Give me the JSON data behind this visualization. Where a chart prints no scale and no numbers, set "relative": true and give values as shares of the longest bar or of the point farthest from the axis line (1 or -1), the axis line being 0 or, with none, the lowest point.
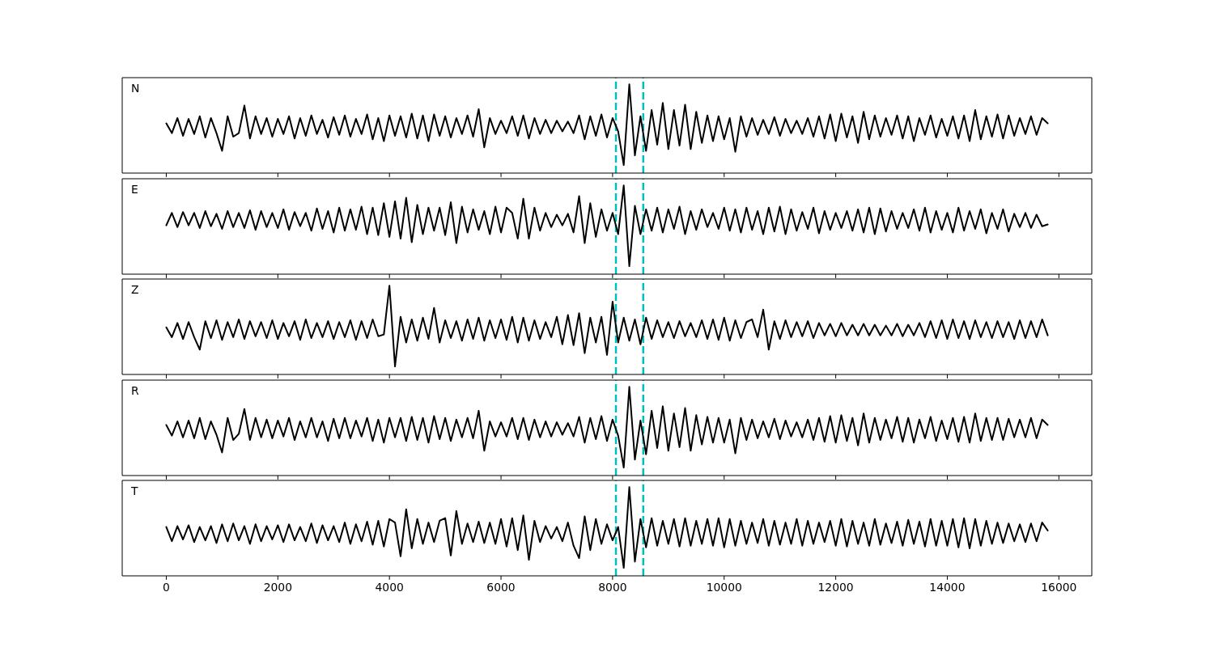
{
  "chart_data": [
    {
      "type": "line",
      "annotations": [
        "N"
      ],
      "relative": true,
      "color": "#000000",
      "xlim": [
        -790,
        16590
      ],
      "xticks": [
        0,
        2000,
        4000,
        6000,
        8000,
        10000,
        12000,
        14000,
        16000
      ],
      "tick_labels": false,
      "ref_lines": [
        {
          "axis": "x",
          "value": 8060,
          "color": "#00bfbf",
          "line_style": "dashed"
        },
        {
          "axis": "x",
          "value": 8550,
          "color": "#00bfbf",
          "line_style": "dashed"
        }
      ],
      "x": [
        0,
        100,
        200,
        300,
        400,
        500,
        600,
        700,
        800,
        900,
        1000,
        1100,
        1200,
        1300,
        1400,
        1500,
        1600,
        1700,
        1800,
        1900,
        2000,
        2100,
        2200,
        2300,
        2400,
        2500,
        2600,
        2700,
        2800,
        2900,
        3000,
        3100,
        3200,
        3300,
        3400,
        3500,
        3600,
        3700,
        3800,
        3900,
        4000,
        4100,
        4200,
        4300,
        4400,
        4500,
        4600,
        4700,
        4800,
        4900,
        5000,
        5100,
        5200,
        5300,
        5400,
        5500,
        5600,
        5700,
        5800,
        5900,
        6000,
        6100,
        6200,
        6300,
        6400,
        6500,
        6600,
        6700,
        6800,
        6900,
        7000,
        7100,
        7200,
        7300,
        7400,
        7500,
        7600,
        7700,
        7800,
        7900,
        8000,
        8100,
        8200,
        8300,
        8400,
        8500,
        8600,
        8700,
        8800,
        8900,
        9000,
        9100,
        9200,
        9300,
        9400,
        9500,
        9600,
        9700,
        9800,
        9900,
        10000,
        10100,
        10200,
        10300,
        10400,
        10500,
        10600,
        10700,
        10800,
        10900,
        11000,
        11100,
        11200,
        11300,
        11400,
        11500,
        11600,
        11700,
        11800,
        11900,
        12000,
        12100,
        12200,
        12300,
        12400,
        12500,
        12600,
        12700,
        12800,
        12900,
        13000,
        13100,
        13200,
        13300,
        13400,
        13500,
        13600,
        13700,
        13800,
        13900,
        14000,
        14100,
        14200,
        14300,
        14400,
        14500,
        14600,
        14700,
        14800,
        14900,
        15000,
        15100,
        15200,
        15300,
        15400,
        15500,
        15600,
        15700,
        15800
      ],
      "values": [
        0.56,
        0.45,
        0.62,
        0.42,
        0.61,
        0.44,
        0.64,
        0.4,
        0.62,
        0.45,
        0.25,
        0.64,
        0.41,
        0.45,
        0.76,
        0.39,
        0.64,
        0.44,
        0.62,
        0.41,
        0.61,
        0.44,
        0.64,
        0.39,
        0.62,
        0.42,
        0.65,
        0.44,
        0.6,
        0.4,
        0.63,
        0.43,
        0.65,
        0.41,
        0.61,
        0.44,
        0.66,
        0.38,
        0.62,
        0.36,
        0.65,
        0.42,
        0.64,
        0.4,
        0.67,
        0.39,
        0.65,
        0.36,
        0.66,
        0.42,
        0.64,
        0.4,
        0.62,
        0.44,
        0.65,
        0.41,
        0.72,
        0.29,
        0.62,
        0.44,
        0.59,
        0.45,
        0.64,
        0.42,
        0.65,
        0.39,
        0.62,
        0.44,
        0.6,
        0.45,
        0.59,
        0.47,
        0.58,
        0.45,
        0.65,
        0.38,
        0.64,
        0.42,
        0.66,
        0.4,
        0.62,
        0.47,
        0.09,
        1.0,
        0.2,
        0.64,
        0.25,
        0.71,
        0.32,
        0.79,
        0.27,
        0.71,
        0.31,
        0.77,
        0.27,
        0.69,
        0.34,
        0.65,
        0.36,
        0.64,
        0.38,
        0.62,
        0.24,
        0.64,
        0.41,
        0.62,
        0.43,
        0.6,
        0.44,
        0.63,
        0.42,
        0.61,
        0.45,
        0.59,
        0.44,
        0.62,
        0.41,
        0.64,
        0.39,
        0.66,
        0.36,
        0.67,
        0.4,
        0.64,
        0.34,
        0.69,
        0.38,
        0.65,
        0.41,
        0.62,
        0.43,
        0.65,
        0.39,
        0.64,
        0.36,
        0.62,
        0.43,
        0.65,
        0.4,
        0.61,
        0.42,
        0.64,
        0.39,
        0.65,
        0.36,
        0.71,
        0.38,
        0.64,
        0.41,
        0.66,
        0.39,
        0.65,
        0.42,
        0.62,
        0.44,
        0.64,
        0.43,
        0.62,
        0.56
      ]
    },
    {
      "type": "line",
      "annotations": [
        "E"
      ],
      "relative": true,
      "color": "#000000",
      "xlim": [
        -790,
        16590
      ],
      "xticks": [
        0,
        2000,
        4000,
        6000,
        8000,
        10000,
        12000,
        14000,
        16000
      ],
      "tick_labels": false,
      "ref_lines": [
        {
          "axis": "x",
          "value": 8060,
          "color": "#00bfbf",
          "line_style": "dashed"
        },
        {
          "axis": "x",
          "value": 8550,
          "color": "#00bfbf",
          "line_style": "dashed"
        }
      ],
      "x": [
        0,
        100,
        200,
        300,
        400,
        500,
        600,
        700,
        800,
        900,
        1000,
        1100,
        1200,
        1300,
        1400,
        1500,
        1600,
        1700,
        1800,
        1900,
        2000,
        2100,
        2200,
        2300,
        2400,
        2500,
        2600,
        2700,
        2800,
        2900,
        3000,
        3100,
        3200,
        3300,
        3400,
        3500,
        3600,
        3700,
        3800,
        3900,
        4000,
        4100,
        4200,
        4300,
        4400,
        4500,
        4600,
        4700,
        4800,
        4900,
        5000,
        5100,
        5200,
        5300,
        5400,
        5500,
        5600,
        5700,
        5800,
        5900,
        6000,
        6100,
        6200,
        6300,
        6400,
        6500,
        6600,
        6700,
        6800,
        6900,
        7000,
        7100,
        7200,
        7300,
        7400,
        7500,
        7600,
        7700,
        7800,
        7900,
        8000,
        8100,
        8200,
        8300,
        8400,
        8500,
        8600,
        8700,
        8800,
        8900,
        9000,
        9100,
        9200,
        9300,
        9400,
        9500,
        9600,
        9700,
        9800,
        9900,
        10000,
        10100,
        10200,
        10300,
        10400,
        10500,
        10600,
        10700,
        10800,
        10900,
        11000,
        11100,
        11200,
        11300,
        11400,
        11500,
        11600,
        11700,
        11800,
        11900,
        12000,
        12100,
        12200,
        12300,
        12400,
        12500,
        12600,
        12700,
        12800,
        12900,
        13000,
        13100,
        13200,
        13300,
        13400,
        13500,
        13600,
        13700,
        13800,
        13900,
        14000,
        14100,
        14200,
        14300,
        14400,
        14500,
        14600,
        14700,
        14800,
        14900,
        15000,
        15100,
        15200,
        15300,
        15400,
        15500,
        15600,
        15700,
        15800
      ],
      "values": [
        0.55,
        0.69,
        0.53,
        0.7,
        0.55,
        0.69,
        0.52,
        0.71,
        0.54,
        0.68,
        0.51,
        0.71,
        0.53,
        0.69,
        0.52,
        0.72,
        0.5,
        0.71,
        0.53,
        0.69,
        0.52,
        0.73,
        0.5,
        0.7,
        0.54,
        0.69,
        0.49,
        0.74,
        0.51,
        0.71,
        0.47,
        0.75,
        0.49,
        0.73,
        0.5,
        0.76,
        0.45,
        0.75,
        0.44,
        0.8,
        0.42,
        0.82,
        0.4,
        0.86,
        0.36,
        0.78,
        0.45,
        0.75,
        0.49,
        0.75,
        0.44,
        0.81,
        0.35,
        0.76,
        0.47,
        0.73,
        0.5,
        0.71,
        0.45,
        0.76,
        0.47,
        0.75,
        0.69,
        0.4,
        0.85,
        0.4,
        0.75,
        0.49,
        0.69,
        0.53,
        0.67,
        0.55,
        0.68,
        0.47,
        0.88,
        0.35,
        0.8,
        0.42,
        0.73,
        0.49,
        0.69,
        0.45,
        1.0,
        0.09,
        0.77,
        0.45,
        0.73,
        0.49,
        0.75,
        0.47,
        0.73,
        0.51,
        0.76,
        0.45,
        0.71,
        0.5,
        0.73,
        0.53,
        0.69,
        0.51,
        0.75,
        0.49,
        0.73,
        0.47,
        0.75,
        0.5,
        0.71,
        0.45,
        0.75,
        0.48,
        0.76,
        0.45,
        0.73,
        0.49,
        0.7,
        0.51,
        0.75,
        0.46,
        0.71,
        0.5,
        0.69,
        0.52,
        0.71,
        0.49,
        0.73,
        0.47,
        0.75,
        0.45,
        0.74,
        0.48,
        0.71,
        0.51,
        0.69,
        0.52,
        0.73,
        0.49,
        0.75,
        0.47,
        0.71,
        0.5,
        0.69,
        0.47,
        0.75,
        0.49,
        0.71,
        0.51,
        0.73,
        0.46,
        0.69,
        0.51,
        0.73,
        0.48,
        0.68,
        0.53,
        0.69,
        0.52,
        0.67,
        0.54,
        0.56
      ]
    },
    {
      "type": "line",
      "annotations": [
        "Z"
      ],
      "relative": true,
      "color": "#000000",
      "xlim": [
        -790,
        16590
      ],
      "xticks": [
        0,
        2000,
        4000,
        6000,
        8000,
        10000,
        12000,
        14000,
        16000
      ],
      "tick_labels": false,
      "ref_lines": [
        {
          "axis": "x",
          "value": 8060,
          "color": "#00bfbf",
          "line_style": "dashed"
        },
        {
          "axis": "x",
          "value": 8550,
          "color": "#00bfbf",
          "line_style": "dashed"
        }
      ],
      "x": [
        0,
        100,
        200,
        300,
        400,
        500,
        600,
        700,
        800,
        900,
        1000,
        1100,
        1200,
        1300,
        1400,
        1500,
        1600,
        1700,
        1800,
        1900,
        2000,
        2100,
        2200,
        2300,
        2400,
        2500,
        2600,
        2700,
        2800,
        2900,
        3000,
        3100,
        3200,
        3300,
        3400,
        3500,
        3600,
        3700,
        3800,
        3900,
        4000,
        4100,
        4200,
        4300,
        4400,
        4500,
        4600,
        4700,
        4800,
        4900,
        5000,
        5100,
        5200,
        5300,
        5400,
        5500,
        5600,
        5700,
        5800,
        5900,
        6000,
        6100,
        6200,
        6300,
        6400,
        6500,
        6600,
        6700,
        6800,
        6900,
        7000,
        7100,
        7200,
        7300,
        7400,
        7500,
        7600,
        7700,
        7800,
        7900,
        8000,
        8100,
        8200,
        8300,
        8400,
        8500,
        8600,
        8700,
        8800,
        8900,
        9000,
        9100,
        9200,
        9300,
        9400,
        9500,
        9600,
        9700,
        9800,
        9900,
        10000,
        10100,
        10200,
        10300,
        10400,
        10500,
        10600,
        10700,
        10800,
        10900,
        11000,
        11100,
        11200,
        11300,
        11400,
        11500,
        11600,
        11700,
        11800,
        11900,
        12000,
        12100,
        12200,
        12300,
        12400,
        12500,
        12600,
        12700,
        12800,
        12900,
        13000,
        13100,
        13200,
        13300,
        13400,
        13500,
        13600,
        13700,
        13800,
        13900,
        14000,
        14100,
        14200,
        14300,
        14400,
        14500,
        14600,
        14700,
        14800,
        14900,
        15000,
        15100,
        15200,
        15300,
        15400,
        15500,
        15600,
        15700,
        15800
      ],
      "values": [
        0.53,
        0.42,
        0.58,
        0.4,
        0.59,
        0.42,
        0.28,
        0.6,
        0.41,
        0.61,
        0.39,
        0.59,
        0.42,
        0.62,
        0.4,
        0.6,
        0.43,
        0.59,
        0.41,
        0.61,
        0.4,
        0.58,
        0.43,
        0.6,
        0.39,
        0.62,
        0.41,
        0.58,
        0.42,
        0.6,
        0.4,
        0.59,
        0.42,
        0.61,
        0.39,
        0.6,
        0.41,
        0.62,
        0.43,
        0.45,
        1.0,
        0.09,
        0.65,
        0.36,
        0.62,
        0.38,
        0.64,
        0.4,
        0.75,
        0.36,
        0.61,
        0.41,
        0.6,
        0.38,
        0.62,
        0.4,
        0.64,
        0.38,
        0.61,
        0.41,
        0.62,
        0.39,
        0.65,
        0.36,
        0.64,
        0.38,
        0.61,
        0.4,
        0.59,
        0.42,
        0.65,
        0.34,
        0.67,
        0.33,
        0.69,
        0.24,
        0.64,
        0.36,
        0.65,
        0.22,
        0.82,
        0.36,
        0.64,
        0.38,
        0.62,
        0.34,
        0.64,
        0.4,
        0.61,
        0.42,
        0.59,
        0.41,
        0.6,
        0.43,
        0.58,
        0.42,
        0.61,
        0.4,
        0.62,
        0.39,
        0.64,
        0.38,
        0.61,
        0.41,
        0.59,
        0.62,
        0.42,
        0.73,
        0.28,
        0.6,
        0.4,
        0.61,
        0.42,
        0.59,
        0.43,
        0.6,
        0.41,
        0.58,
        0.44,
        0.57,
        0.43,
        0.58,
        0.44,
        0.56,
        0.44,
        0.57,
        0.44,
        0.56,
        0.44,
        0.55,
        0.44,
        0.57,
        0.43,
        0.56,
        0.44,
        0.58,
        0.42,
        0.6,
        0.41,
        0.61,
        0.4,
        0.62,
        0.41,
        0.6,
        0.4,
        0.61,
        0.42,
        0.59,
        0.41,
        0.6,
        0.42,
        0.59,
        0.4,
        0.61,
        0.41,
        0.6,
        0.42,
        0.62,
        0.44
      ]
    },
    {
      "type": "line",
      "annotations": [
        "R"
      ],
      "relative": true,
      "color": "#000000",
      "xlim": [
        -790,
        16590
      ],
      "xticks": [
        0,
        2000,
        4000,
        6000,
        8000,
        10000,
        12000,
        14000,
        16000
      ],
      "tick_labels": false,
      "ref_lines": [
        {
          "axis": "x",
          "value": 8060,
          "color": "#00bfbf",
          "line_style": "dashed"
        },
        {
          "axis": "x",
          "value": 8550,
          "color": "#00bfbf",
          "line_style": "dashed"
        }
      ],
      "x": [
        0,
        100,
        200,
        300,
        400,
        500,
        600,
        700,
        800,
        900,
        1000,
        1100,
        1200,
        1300,
        1400,
        1500,
        1600,
        1700,
        1800,
        1900,
        2000,
        2100,
        2200,
        2300,
        2400,
        2500,
        2600,
        2700,
        2800,
        2900,
        3000,
        3100,
        3200,
        3300,
        3400,
        3500,
        3600,
        3700,
        3800,
        3900,
        4000,
        4100,
        4200,
        4300,
        4400,
        4500,
        4600,
        4700,
        4800,
        4900,
        5000,
        5100,
        5200,
        5300,
        5400,
        5500,
        5600,
        5700,
        5800,
        5900,
        6000,
        6100,
        6200,
        6300,
        6400,
        6500,
        6600,
        6700,
        6800,
        6900,
        7000,
        7100,
        7200,
        7300,
        7400,
        7500,
        7600,
        7700,
        7800,
        7900,
        8000,
        8100,
        8200,
        8300,
        8400,
        8500,
        8600,
        8700,
        8800,
        8900,
        9000,
        9100,
        9200,
        9300,
        9400,
        9500,
        9600,
        9700,
        9800,
        9900,
        10000,
        10100,
        10200,
        10300,
        10400,
        10500,
        10600,
        10700,
        10800,
        10900,
        11000,
        11100,
        11200,
        11300,
        11400,
        11500,
        11600,
        11700,
        11800,
        11900,
        12000,
        12100,
        12200,
        12300,
        12400,
        12500,
        12600,
        12700,
        12800,
        12900,
        13000,
        13100,
        13200,
        13300,
        13400,
        13500,
        13600,
        13700,
        13800,
        13900,
        14000,
        14100,
        14200,
        14300,
        14400,
        14500,
        14600,
        14700,
        14800,
        14900,
        15000,
        15100,
        15200,
        15300,
        15400,
        15500,
        15600,
        15700,
        15800
      ],
      "values": [
        0.57,
        0.45,
        0.61,
        0.43,
        0.62,
        0.42,
        0.65,
        0.41,
        0.61,
        0.46,
        0.26,
        0.65,
        0.4,
        0.47,
        0.75,
        0.4,
        0.65,
        0.43,
        0.63,
        0.42,
        0.62,
        0.44,
        0.65,
        0.4,
        0.61,
        0.43,
        0.65,
        0.43,
        0.61,
        0.39,
        0.64,
        0.42,
        0.65,
        0.42,
        0.62,
        0.44,
        0.65,
        0.39,
        0.63,
        0.37,
        0.65,
        0.43,
        0.65,
        0.39,
        0.66,
        0.4,
        0.65,
        0.37,
        0.67,
        0.41,
        0.65,
        0.39,
        0.63,
        0.43,
        0.65,
        0.42,
        0.73,
        0.28,
        0.61,
        0.44,
        0.6,
        0.44,
        0.65,
        0.41,
        0.65,
        0.4,
        0.63,
        0.43,
        0.61,
        0.44,
        0.6,
        0.46,
        0.59,
        0.44,
        0.66,
        0.37,
        0.65,
        0.41,
        0.67,
        0.39,
        0.63,
        0.45,
        0.09,
        1.0,
        0.18,
        0.62,
        0.24,
        0.73,
        0.31,
        0.78,
        0.28,
        0.7,
        0.32,
        0.76,
        0.28,
        0.68,
        0.35,
        0.66,
        0.37,
        0.65,
        0.37,
        0.63,
        0.25,
        0.65,
        0.4,
        0.63,
        0.42,
        0.61,
        0.43,
        0.64,
        0.41,
        0.62,
        0.44,
        0.6,
        0.43,
        0.63,
        0.4,
        0.65,
        0.38,
        0.67,
        0.37,
        0.68,
        0.39,
        0.65,
        0.34,
        0.7,
        0.37,
        0.65,
        0.4,
        0.63,
        0.42,
        0.66,
        0.38,
        0.65,
        0.37,
        0.63,
        0.42,
        0.66,
        0.39,
        0.62,
        0.41,
        0.65,
        0.38,
        0.66,
        0.37,
        0.7,
        0.39,
        0.65,
        0.4,
        0.65,
        0.4,
        0.64,
        0.43,
        0.63,
        0.43,
        0.65,
        0.42,
        0.63,
        0.57
      ]
    },
    {
      "type": "line",
      "annotations": [
        "T"
      ],
      "relative": true,
      "color": "#000000",
      "xlim": [
        -790,
        16590
      ],
      "xticks": [
        0,
        2000,
        4000,
        6000,
        8000,
        10000,
        12000,
        14000,
        16000
      ],
      "tick_labels": "x",
      "ref_lines": [
        {
          "axis": "x",
          "value": 8060,
          "color": "#00bfbf",
          "line_style": "dashed"
        },
        {
          "axis": "x",
          "value": 8550,
          "color": "#00bfbf",
          "line_style": "dashed"
        }
      ],
      "x": [
        0,
        100,
        200,
        300,
        400,
        500,
        600,
        700,
        800,
        900,
        1000,
        1100,
        1200,
        1300,
        1400,
        1500,
        1600,
        1700,
        1800,
        1900,
        2000,
        2100,
        2200,
        2300,
        2400,
        2500,
        2600,
        2700,
        2800,
        2900,
        3000,
        3100,
        3200,
        3300,
        3400,
        3500,
        3600,
        3700,
        3800,
        3900,
        4000,
        4100,
        4200,
        4300,
        4400,
        4500,
        4600,
        4700,
        4800,
        4900,
        5000,
        5100,
        5200,
        5300,
        5400,
        5500,
        5600,
        5700,
        5800,
        5900,
        6000,
        6100,
        6200,
        6300,
        6400,
        6500,
        6600,
        6700,
        6800,
        6900,
        7000,
        7100,
        7200,
        7300,
        7400,
        7500,
        7600,
        7700,
        7800,
        7900,
        8000,
        8100,
        8200,
        8300,
        8400,
        8500,
        8600,
        8700,
        8800,
        8900,
        9000,
        9100,
        9200,
        9300,
        9400,
        9500,
        9600,
        9700,
        9800,
        9900,
        10000,
        10100,
        10200,
        10300,
        10400,
        10500,
        10600,
        10700,
        10800,
        10900,
        11000,
        11100,
        11200,
        11300,
        11400,
        11500,
        11600,
        11700,
        11800,
        11900,
        12000,
        12100,
        12200,
        12300,
        12400,
        12500,
        12600,
        12700,
        12800,
        12900,
        13000,
        13100,
        13200,
        13300,
        13400,
        13500,
        13600,
        13700,
        13800,
        13900,
        14000,
        14100,
        14200,
        14300,
        14400,
        14500,
        14600,
        14700,
        14800,
        14900,
        15000,
        15100,
        15200,
        15300,
        15400,
        15500,
        15600,
        15700,
        15800
      ],
      "values": [
        0.55,
        0.39,
        0.56,
        0.41,
        0.57,
        0.38,
        0.55,
        0.4,
        0.56,
        0.37,
        0.58,
        0.39,
        0.59,
        0.4,
        0.56,
        0.36,
        0.58,
        0.39,
        0.56,
        0.41,
        0.57,
        0.38,
        0.58,
        0.4,
        0.55,
        0.39,
        0.59,
        0.37,
        0.57,
        0.4,
        0.56,
        0.38,
        0.6,
        0.36,
        0.58,
        0.39,
        0.61,
        0.35,
        0.62,
        0.33,
        0.64,
        0.6,
        0.22,
        0.75,
        0.31,
        0.64,
        0.36,
        0.6,
        0.38,
        0.62,
        0.65,
        0.23,
        0.73,
        0.36,
        0.59,
        0.38,
        0.61,
        0.37,
        0.6,
        0.36,
        0.64,
        0.33,
        0.65,
        0.29,
        0.68,
        0.18,
        0.62,
        0.38,
        0.56,
        0.42,
        0.55,
        0.39,
        0.6,
        0.34,
        0.2,
        0.67,
        0.29,
        0.64,
        0.36,
        0.58,
        0.4,
        0.55,
        0.09,
        1.0,
        0.16,
        0.64,
        0.32,
        0.65,
        0.34,
        0.62,
        0.36,
        0.64,
        0.33,
        0.65,
        0.34,
        0.62,
        0.36,
        0.64,
        0.34,
        0.65,
        0.32,
        0.64,
        0.34,
        0.62,
        0.36,
        0.6,
        0.37,
        0.64,
        0.34,
        0.62,
        0.35,
        0.6,
        0.36,
        0.64,
        0.34,
        0.62,
        0.36,
        0.6,
        0.38,
        0.62,
        0.34,
        0.64,
        0.33,
        0.62,
        0.36,
        0.6,
        0.34,
        0.64,
        0.35,
        0.59,
        0.37,
        0.61,
        0.34,
        0.63,
        0.36,
        0.61,
        0.33,
        0.64,
        0.34,
        0.62,
        0.34,
        0.64,
        0.32,
        0.65,
        0.31,
        0.64,
        0.34,
        0.62,
        0.36,
        0.6,
        0.37,
        0.59,
        0.39,
        0.58,
        0.38,
        0.59,
        0.39,
        0.6,
        0.51
      ]
    }
  ]
}
